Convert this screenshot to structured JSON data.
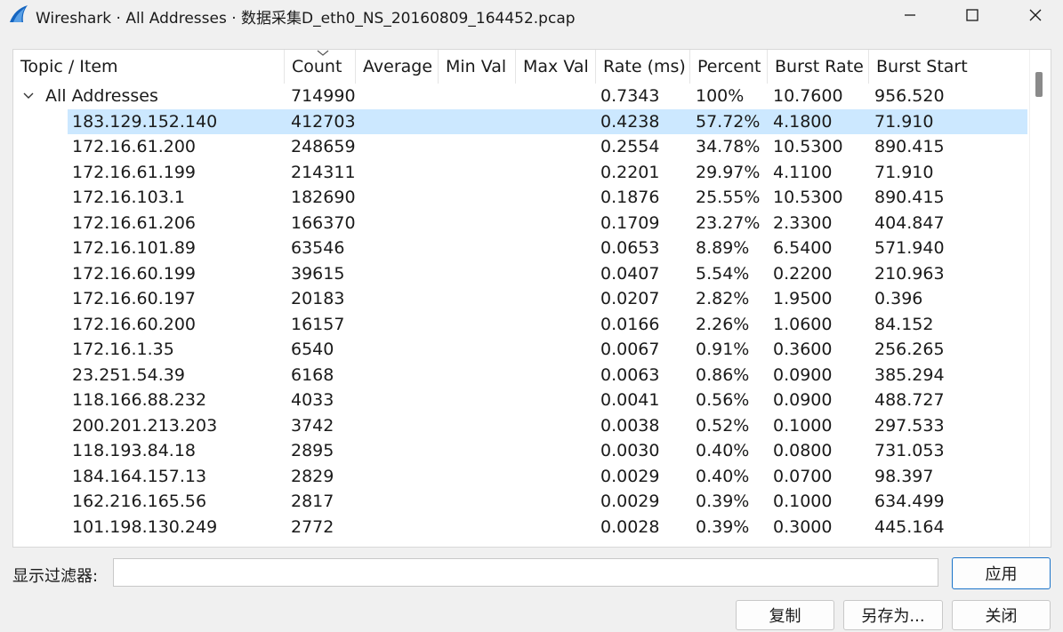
{
  "window": {
    "title": "Wireshark · All Addresses · 数据采集D_eth0_NS_20160809_164452.pcap",
    "accent": "#1a73c9",
    "selected_row_color": "#cce8ff"
  },
  "table": {
    "columns": [
      "Topic / Item",
      "Count",
      "Average",
      "Min Val",
      "Max Val",
      "Rate (ms)",
      "Percent",
      "Burst Rate",
      "Burst Start"
    ],
    "root": {
      "topic": "All Addresses",
      "count": "714990",
      "rate": "0.7343",
      "percent": "100%",
      "burst_rate": "10.7600",
      "burst_start": "956.520"
    },
    "rows": [
      {
        "topic": "183.129.152.140",
        "count": "412703",
        "rate": "0.4238",
        "percent": "57.72%",
        "burst_rate": "4.1800",
        "burst_start": "71.910"
      },
      {
        "topic": "172.16.61.200",
        "count": "248659",
        "rate": "0.2554",
        "percent": "34.78%",
        "burst_rate": "10.5300",
        "burst_start": "890.415"
      },
      {
        "topic": "172.16.61.199",
        "count": "214311",
        "rate": "0.2201",
        "percent": "29.97%",
        "burst_rate": "4.1100",
        "burst_start": "71.910"
      },
      {
        "topic": "172.16.103.1",
        "count": "182690",
        "rate": "0.1876",
        "percent": "25.55%",
        "burst_rate": "10.5300",
        "burst_start": "890.415"
      },
      {
        "topic": "172.16.61.206",
        "count": "166370",
        "rate": "0.1709",
        "percent": "23.27%",
        "burst_rate": "2.3300",
        "burst_start": "404.847"
      },
      {
        "topic": "172.16.101.89",
        "count": "63546",
        "rate": "0.0653",
        "percent": "8.89%",
        "burst_rate": "6.5400",
        "burst_start": "571.940"
      },
      {
        "topic": "172.16.60.199",
        "count": "39615",
        "rate": "0.0407",
        "percent": "5.54%",
        "burst_rate": "0.2200",
        "burst_start": "210.963"
      },
      {
        "topic": "172.16.60.197",
        "count": "20183",
        "rate": "0.0207",
        "percent": "2.82%",
        "burst_rate": "1.9500",
        "burst_start": "0.396"
      },
      {
        "topic": "172.16.60.200",
        "count": "16157",
        "rate": "0.0166",
        "percent": "2.26%",
        "burst_rate": "1.0600",
        "burst_start": "84.152"
      },
      {
        "topic": "172.16.1.35",
        "count": "6540",
        "rate": "0.0067",
        "percent": "0.91%",
        "burst_rate": "0.3600",
        "burst_start": "256.265"
      },
      {
        "topic": "23.251.54.39",
        "count": "6168",
        "rate": "0.0063",
        "percent": "0.86%",
        "burst_rate": "0.0900",
        "burst_start": "385.294"
      },
      {
        "topic": "118.166.88.232",
        "count": "4033",
        "rate": "0.0041",
        "percent": "0.56%",
        "burst_rate": "0.0900",
        "burst_start": "488.727"
      },
      {
        "topic": "200.201.213.203",
        "count": "3742",
        "rate": "0.0038",
        "percent": "0.52%",
        "burst_rate": "0.1000",
        "burst_start": "297.533"
      },
      {
        "topic": "118.193.84.18",
        "count": "2895",
        "rate": "0.0030",
        "percent": "0.40%",
        "burst_rate": "0.0800",
        "burst_start": "731.053"
      },
      {
        "topic": "184.164.157.13",
        "count": "2829",
        "rate": "0.0029",
        "percent": "0.40%",
        "burst_rate": "0.0700",
        "burst_start": "98.397"
      },
      {
        "topic": "162.216.165.56",
        "count": "2817",
        "rate": "0.0029",
        "percent": "0.39%",
        "burst_rate": "0.1000",
        "burst_start": "634.499"
      },
      {
        "topic": "101.198.130.249",
        "count": "2772",
        "rate": "0.0028",
        "percent": "0.39%",
        "burst_rate": "0.3000",
        "burst_start": "445.164"
      }
    ]
  },
  "filter": {
    "label": "显示过滤器:",
    "value": "",
    "placeholder": ""
  },
  "buttons": {
    "apply": "应用",
    "copy": "复制",
    "save_as": "另存为...",
    "close": "关闭"
  }
}
